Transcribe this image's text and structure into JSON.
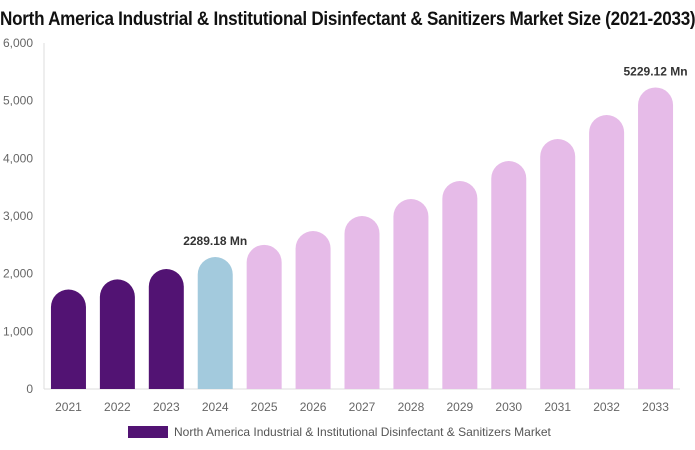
{
  "chart_data": {
    "type": "bar",
    "title": "North America Industrial & Institutional Disinfectant & Sanitizers Market Size (2021-2033)",
    "categories": [
      "2021",
      "2022",
      "2023",
      "2024",
      "2025",
      "2026",
      "2027",
      "2028",
      "2029",
      "2030",
      "2031",
      "2032",
      "2033"
    ],
    "series": [
      {
        "name": "North America Industrial & Institutional Disinfectant & Sanitizers Market",
        "values": [
          1725,
          1900,
          2080,
          2289.18,
          2500,
          2740,
          3000,
          3295,
          3607,
          3954,
          4335,
          4751,
          5229.12
        ]
      }
    ],
    "bar_colors": [
      "#521373",
      "#521373",
      "#521373",
      "#a3cadd",
      "#e6bbe8",
      "#e6bbe8",
      "#e6bbe8",
      "#e6bbe8",
      "#e6bbe8",
      "#e6bbe8",
      "#e6bbe8",
      "#e6bbe8",
      "#e6bbe8"
    ],
    "data_labels": {
      "3": "2289.18 Mn",
      "12": "5229.12 Mn"
    },
    "yticks": [
      "0",
      "1,000",
      "2,000",
      "3,000",
      "4,000",
      "5,000",
      "6,000"
    ],
    "ylim": [
      0,
      6000
    ],
    "grid": false,
    "legend": "bottom",
    "xlabel": "",
    "ylabel": ""
  }
}
